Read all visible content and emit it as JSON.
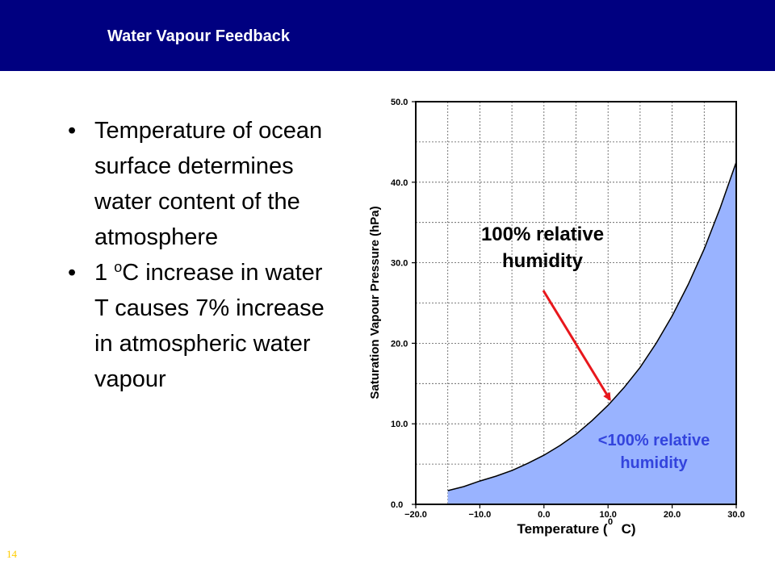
{
  "header": {
    "title": "Water Vapour Feedback",
    "bg_color": "#000080"
  },
  "bullets": [
    {
      "text": "Temperature of ocean surface determines water content of the atmosphere"
    },
    {
      "pre": "1 ",
      "sup": "o",
      "post": "C increase in water T causes 7% increase in atmospheric water vapour"
    }
  ],
  "bullet_char": "•",
  "slide_number": "14",
  "chart_data": {
    "type": "area",
    "xlabel_pre": "Temperature (",
    "xlabel_sup": "0",
    "xlabel_post": "C)",
    "ylabel": "Saturation Vapour Pressure (hPa)",
    "xlim": [
      -20,
      30
    ],
    "ylim": [
      0,
      50
    ],
    "x_ticks": [
      "−20.0",
      "−10.0",
      "0.0",
      "10.0",
      "20.0",
      "30.0"
    ],
    "y_ticks": [
      "0.0",
      "10.0",
      "20.0",
      "30.0",
      "40.0",
      "50.0"
    ],
    "grid": true,
    "series": [
      {
        "x": [
          -15,
          -12.5,
          -10,
          -7.5,
          -5,
          -2.5,
          0,
          2.5,
          5,
          7.5,
          10,
          12.5,
          15,
          17.5,
          20,
          22.5,
          25,
          27.5,
          30
        ],
        "y": [
          1.7,
          2.2,
          2.9,
          3.5,
          4.2,
          5.1,
          6.1,
          7.3,
          8.7,
          10.4,
          12.3,
          14.5,
          17.0,
          20.0,
          23.4,
          27.3,
          31.7,
          36.8,
          42.5
        ]
      }
    ],
    "fill_color": "#99B3FF",
    "annotations": [
      {
        "text_lines": [
          "100% relative",
          "humidity"
        ],
        "arrow_to": [
          10.3,
          13.0
        ],
        "arrow_color": "#E8171C"
      },
      {
        "text_lines": [
          "<100% relative",
          "humidity"
        ],
        "color": "#3344DD"
      }
    ]
  }
}
